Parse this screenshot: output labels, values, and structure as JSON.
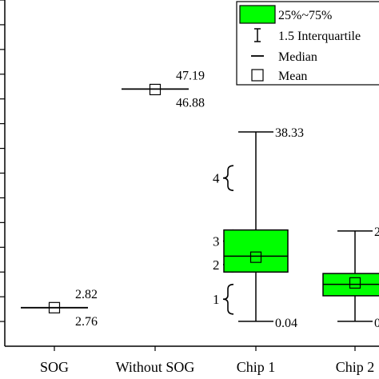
{
  "chart_data": {
    "type": "box",
    "title": "",
    "xlabel": "",
    "ylabel": "",
    "categories": [
      "SOG",
      "Without SOG",
      "Chip 1",
      "Chip 2"
    ],
    "y_axis": {
      "min": -5,
      "max": 65,
      "tick_step": 5,
      "tick_labels_visible": false
    },
    "boxes": [
      {
        "category": "SOG",
        "q1": 2.79,
        "q3": 2.79,
        "median": 2.79,
        "mean": 2.79,
        "whisker_low": 2.79,
        "whisker_high": 2.79,
        "upper_label": "2.82",
        "lower_label": "2.76"
      },
      {
        "category": "Without SOG",
        "q1": 47.0,
        "q3": 47.0,
        "median": 47.0,
        "mean": 46.9,
        "whisker_low": 47.0,
        "whisker_high": 47.0,
        "upper_label": "47.19",
        "lower_label": "46.88"
      },
      {
        "category": "Chip 1",
        "q1": 10.0,
        "q3": 18.5,
        "median": 13.2,
        "mean": 13.0,
        "whisker_low": 0.04,
        "whisker_high": 38.33,
        "upper_label": "38.33",
        "lower_label": "0.04"
      },
      {
        "category": "Chip 2",
        "q1": 5.2,
        "q3": 9.7,
        "median": 7.5,
        "mean": 7.8,
        "whisker_low": 0.04,
        "whisker_high": 18.3,
        "upper_label": "2",
        "lower_label": "0"
      }
    ],
    "annotations": [
      {
        "label": "4",
        "from": 26.5,
        "to": 31.5
      },
      {
        "label": "3",
        "from": 14.0,
        "to": 18.5
      },
      {
        "label": "2",
        "from": 10.0,
        "to": 13.0
      },
      {
        "label": "1",
        "from": 1.5,
        "to": 7.5
      }
    ],
    "legend": {
      "placement": "top-right",
      "items": [
        {
          "symbol": "box",
          "label": "25%~75%"
        },
        {
          "symbol": "whisker",
          "label": "1.5 Interquartile"
        },
        {
          "symbol": "line",
          "label": "Median"
        },
        {
          "symbol": "square",
          "label": "Mean"
        }
      ]
    },
    "colors": {
      "box_fill": "#00ff00",
      "stroke": "#000000",
      "background": "#ffffff"
    }
  }
}
